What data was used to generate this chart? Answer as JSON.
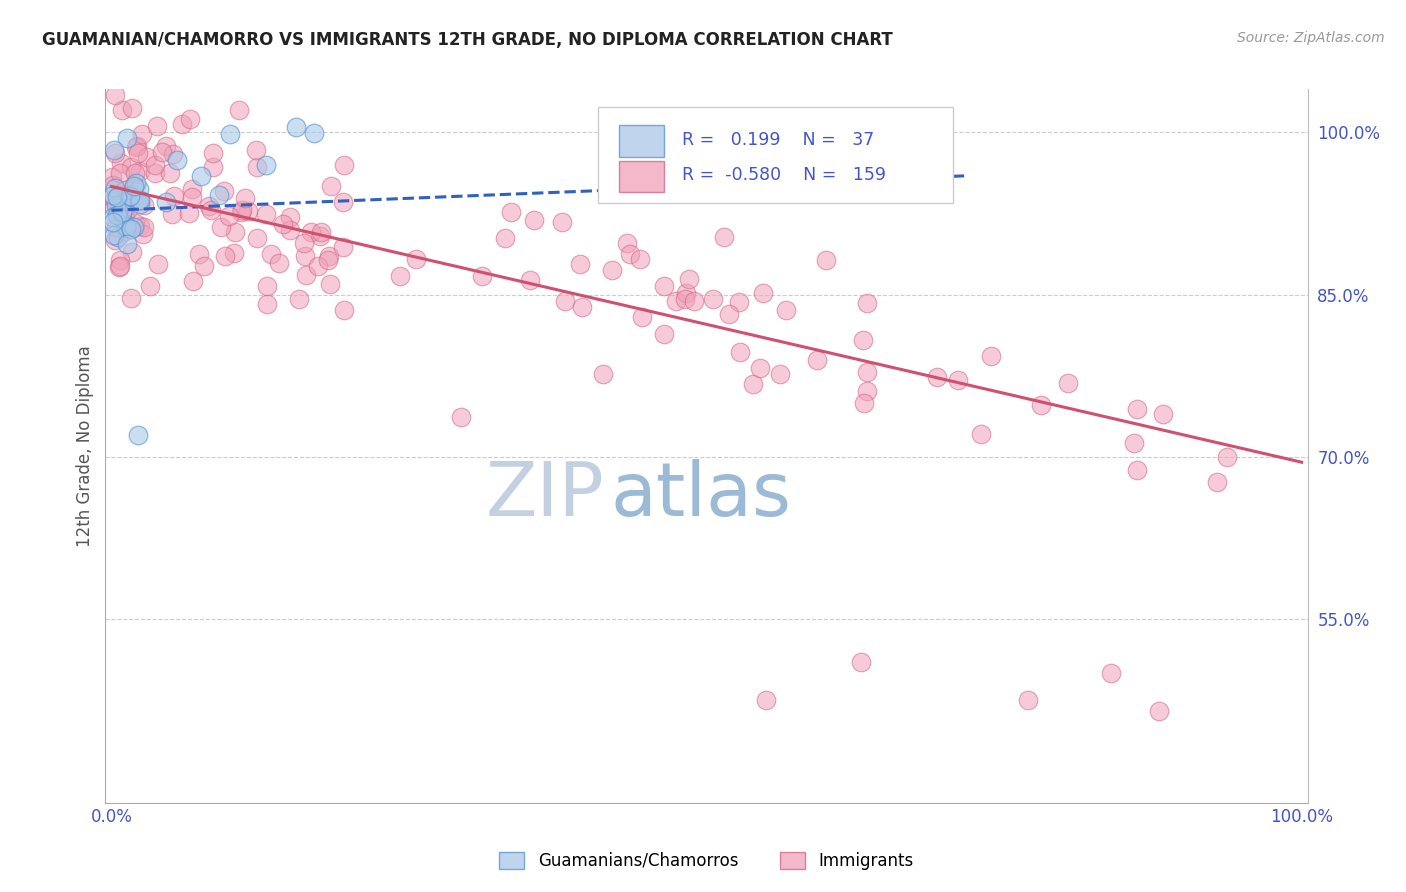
{
  "title": "GUAMANIAN/CHAMORRO VS IMMIGRANTS 12TH GRADE, NO DIPLOMA CORRELATION CHART",
  "source": "Source: ZipAtlas.com",
  "ylabel": "12th Grade, No Diploma",
  "blue_color": "#a8c8e8",
  "blue_edge_color": "#5090d0",
  "pink_color": "#f0a0b8",
  "pink_edge_color": "#d06080",
  "blue_line_color": "#3060c0",
  "pink_line_color": "#d05070",
  "watermark_zip_color": "#c0cce0",
  "watermark_atlas_color": "#a0b8d8",
  "legend_r_blue": "0.199",
  "legend_n_blue": "37",
  "legend_r_pink": "-0.580",
  "legend_n_pink": "159",
  "right_yticks": [
    1.0,
    0.85,
    0.7,
    0.55
  ],
  "right_ytick_labels": [
    "100.0%",
    "85.0%",
    "70.0%",
    "55.0%"
  ],
  "ylim": [
    0.38,
    1.04
  ],
  "xlim": [
    -0.005,
    1.005
  ],
  "blue_trend_x": [
    0.0,
    0.72
  ],
  "blue_trend_y": [
    0.928,
    0.96
  ],
  "pink_trend_x": [
    0.0,
    1.0
  ],
  "pink_trend_y": [
    0.95,
    0.695
  ],
  "tick_label_color": "#4455cc",
  "grid_color": "#cccccc",
  "title_color": "#222222",
  "source_color": "#999999",
  "ylabel_color": "#555555"
}
